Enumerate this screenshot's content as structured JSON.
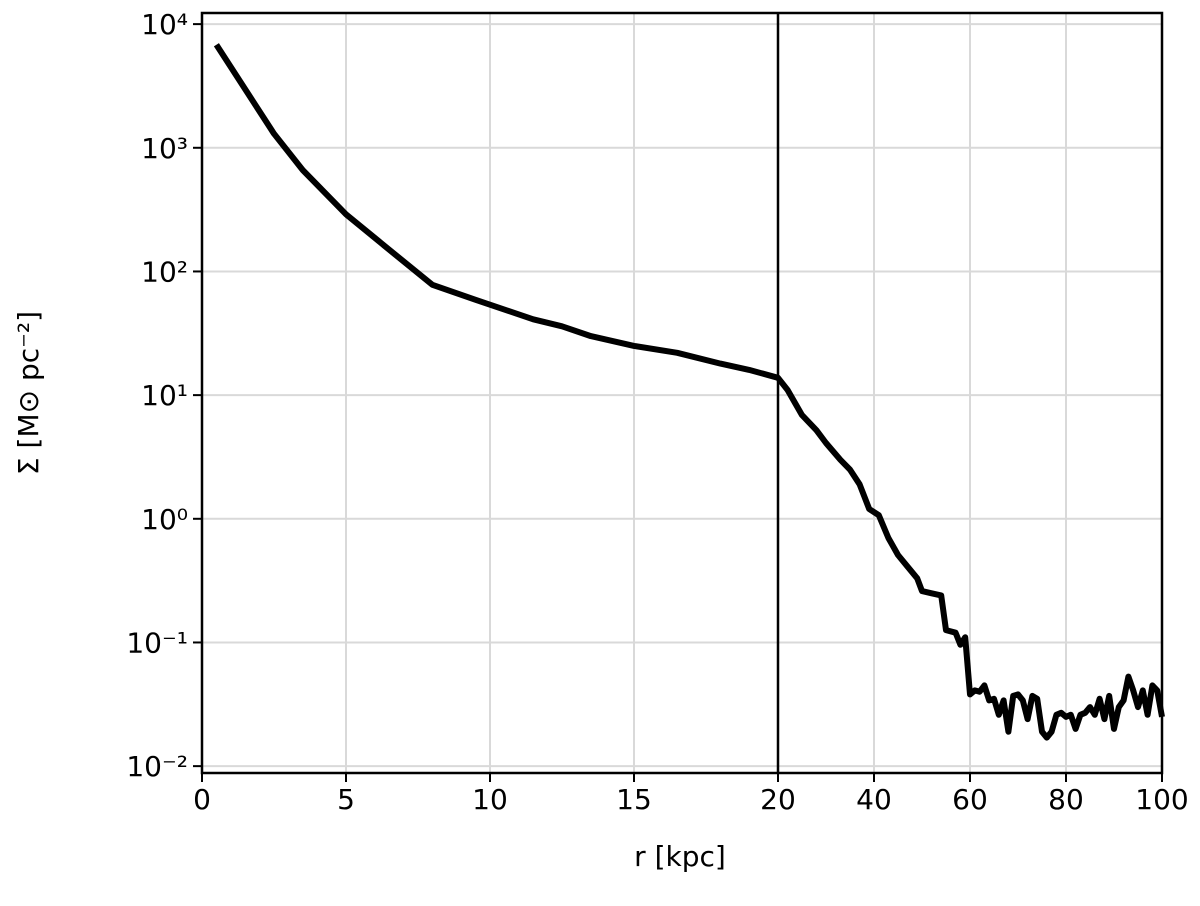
{
  "chart_data": {
    "type": "line",
    "xlabel": "r [kpc]",
    "ylabel": "Σ  [M⊙ pc⁻²]",
    "x": [
      0.5,
      2.5,
      3.5,
      5,
      6.5,
      8,
      9.5,
      11.5,
      12.5,
      13.5,
      15,
      16.5,
      18,
      19,
      20,
      22,
      25,
      28,
      30,
      33,
      35,
      37,
      39,
      41,
      43,
      45,
      47,
      49,
      50,
      52,
      54,
      55,
      57,
      58,
      59,
      60,
      61,
      62,
      63,
      64,
      65,
      66,
      67,
      68,
      69,
      70,
      71,
      72,
      73,
      74,
      75,
      76,
      77,
      78,
      79,
      80,
      81,
      82,
      83,
      84,
      85,
      86,
      87,
      88,
      89,
      90,
      91,
      92,
      93,
      94,
      95,
      96,
      97,
      98,
      99,
      100
    ],
    "series": [
      {
        "color": "#000000",
        "values": [
          6800,
          1300,
          660,
          290,
          150,
          78,
          59,
          41,
          36,
          30,
          25,
          22,
          18,
          16,
          13.8,
          11,
          6.9,
          5.2,
          4.1,
          3.0,
          2.5,
          1.9,
          1.2,
          1.07,
          0.7,
          0.51,
          0.41,
          0.33,
          0.26,
          0.25,
          0.24,
          0.126,
          0.12,
          0.096,
          0.11,
          0.038,
          0.041,
          0.04,
          0.045,
          0.034,
          0.035,
          0.026,
          0.034,
          0.019,
          0.037,
          0.038,
          0.034,
          0.024,
          0.037,
          0.035,
          0.019,
          0.017,
          0.019,
          0.026,
          0.027,
          0.025,
          0.026,
          0.02,
          0.026,
          0.027,
          0.03,
          0.026,
          0.035,
          0.024,
          0.037,
          0.02,
          0.03,
          0.034,
          0.053,
          0.041,
          0.03,
          0.041,
          0.026,
          0.045,
          0.041,
          0.025
        ]
      }
    ],
    "xlim": [
      0,
      100
    ],
    "x_break": 20,
    "xticks": [
      0,
      5,
      10,
      15,
      20,
      40,
      60,
      80,
      100
    ],
    "ylim": [
      0.0088,
      12300
    ],
    "log_y": true,
    "yticks": [
      {
        "value": 0.01,
        "label": "10⁻²"
      },
      {
        "value": 0.1,
        "label": "10⁻¹"
      },
      {
        "value": 1,
        "label": "10⁰"
      },
      {
        "value": 10,
        "label": "10¹"
      },
      {
        "value": 100,
        "label": "10²"
      },
      {
        "value": 1000,
        "label": "10³"
      },
      {
        "value": 10000,
        "label": "10⁴"
      }
    ],
    "grid": true
  }
}
